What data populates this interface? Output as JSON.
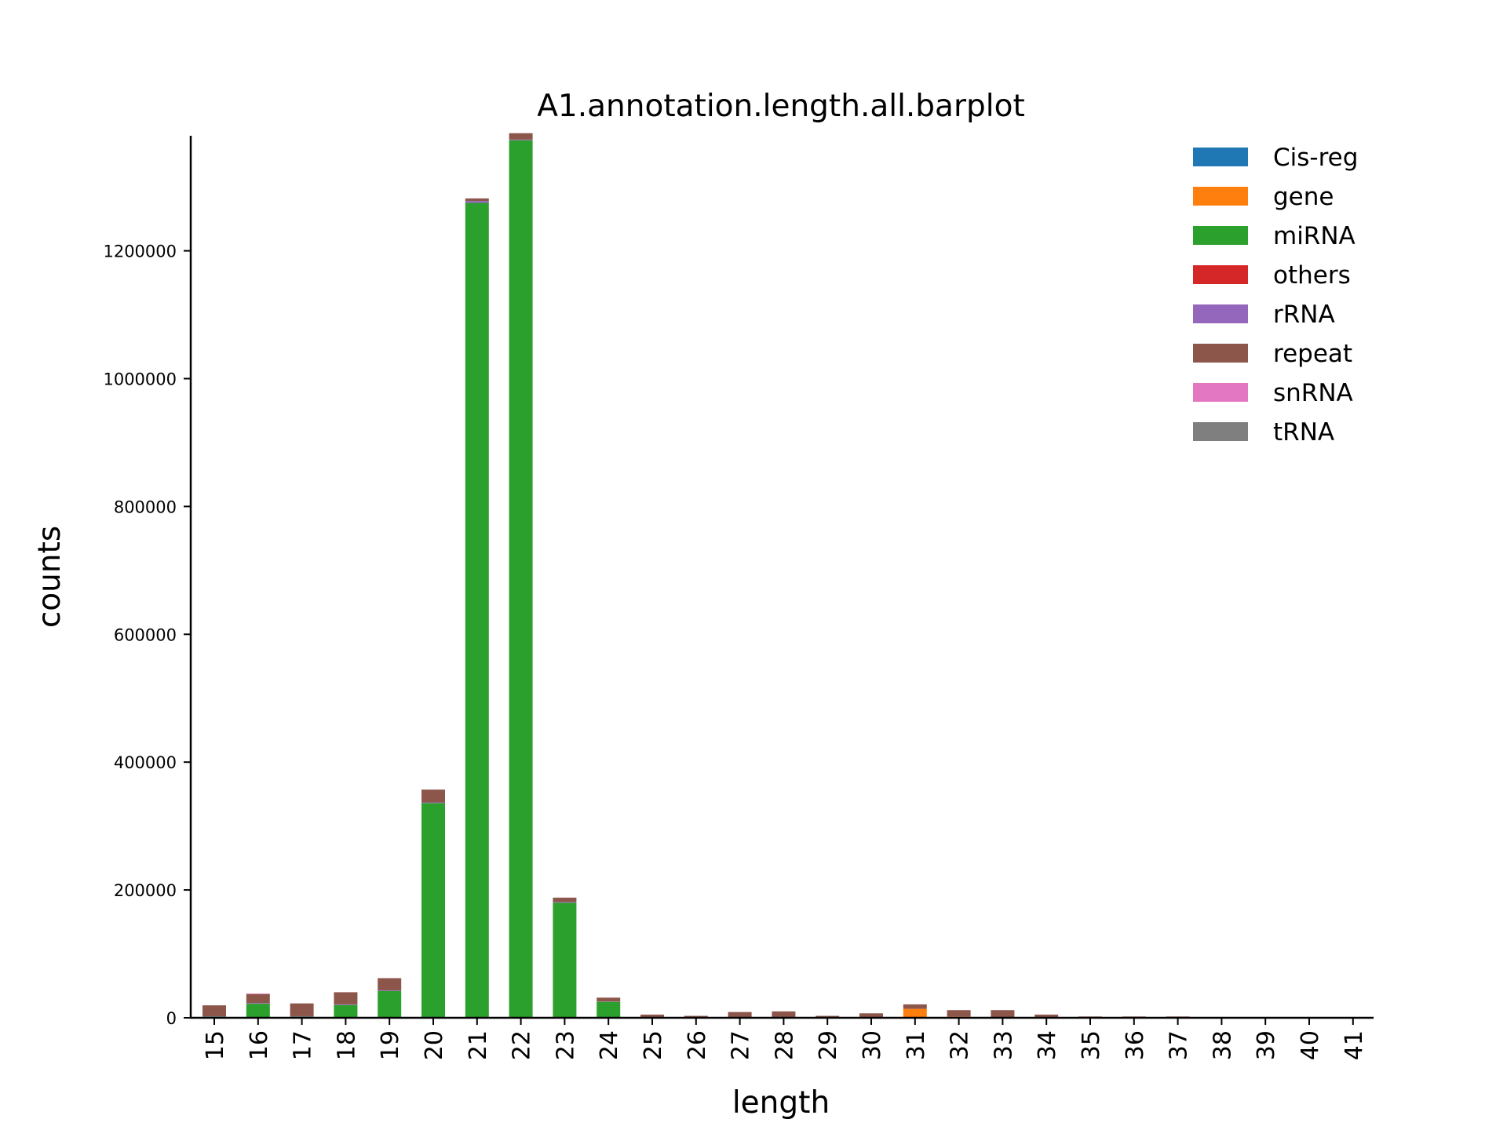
{
  "chart_data": {
    "type": "bar",
    "stacked": true,
    "title": "A1.annotation.length.all.barplot",
    "xlabel": "length",
    "ylabel": "counts",
    "ylim": [
      0,
      1380000
    ],
    "yticks": [
      "0",
      "200000",
      "400000",
      "600000",
      "800000",
      "1000000",
      "1200000"
    ],
    "ytick_values": [
      0,
      200000,
      400000,
      600000,
      800000,
      1000000,
      1200000
    ],
    "categories": [
      "15",
      "16",
      "17",
      "18",
      "19",
      "20",
      "21",
      "22",
      "23",
      "24",
      "25",
      "26",
      "27",
      "28",
      "29",
      "30",
      "31",
      "32",
      "33",
      "34",
      "35",
      "36",
      "37",
      "38",
      "39",
      "40",
      "41"
    ],
    "legend_position": "top-right",
    "grid": false,
    "series": [
      {
        "name": "Cis-reg",
        "color": "#1f77b4",
        "values": [
          0,
          0,
          0,
          0,
          0,
          0,
          0,
          0,
          0,
          0,
          0,
          0,
          0,
          0,
          0,
          0,
          0,
          0,
          0,
          0,
          0,
          0,
          0,
          0,
          0,
          0,
          0
        ]
      },
      {
        "name": "gene",
        "color": "#ff7f0e",
        "values": [
          0,
          0,
          0,
          0,
          0,
          0,
          0,
          0,
          0,
          0,
          0,
          0,
          0,
          0,
          0,
          0,
          14000,
          2000,
          0,
          0,
          0,
          0,
          0,
          0,
          0,
          0,
          0
        ]
      },
      {
        "name": "miRNA",
        "color": "#2ca02c",
        "values": [
          2000,
          22000,
          2000,
          20000,
          42000,
          336000,
          1275000,
          1373000,
          180000,
          25000,
          500,
          0,
          0,
          0,
          0,
          0,
          0,
          0,
          0,
          0,
          0,
          0,
          0,
          0,
          0,
          0,
          0
        ]
      },
      {
        "name": "others",
        "color": "#d62728",
        "values": [
          0,
          0,
          0,
          0,
          0,
          0,
          0,
          0,
          0,
          0,
          0,
          0,
          0,
          0,
          0,
          0,
          0,
          0,
          0,
          0,
          0,
          0,
          0,
          0,
          0,
          0,
          0
        ]
      },
      {
        "name": "rRNA",
        "color": "#9467bd",
        "values": [
          500,
          1000,
          500,
          1000,
          1000,
          1000,
          3000,
          1000,
          1000,
          500,
          500,
          0,
          0,
          0,
          0,
          0,
          0,
          0,
          0,
          0,
          0,
          0,
          0,
          0,
          0,
          0,
          0
        ]
      },
      {
        "name": "repeat",
        "color": "#8c564b",
        "values": [
          17000,
          14000,
          20000,
          19000,
          19000,
          20000,
          4000,
          10000,
          7000,
          6000,
          4000,
          3000,
          9000,
          10000,
          3000,
          7000,
          7000,
          10000,
          12000,
          5000,
          2000,
          2000,
          2000,
          0,
          0,
          0,
          0
        ]
      },
      {
        "name": "snRNA",
        "color": "#e377c2",
        "values": [
          0,
          1000,
          0,
          0,
          0,
          0,
          0,
          0,
          0,
          0,
          0,
          0,
          0,
          0,
          0,
          0,
          0,
          0,
          0,
          0,
          0,
          0,
          0,
          0,
          0,
          0,
          0
        ]
      },
      {
        "name": "tRNA",
        "color": "#7f7f7f",
        "values": [
          0,
          0,
          0,
          0,
          0,
          0,
          0,
          0,
          0,
          0,
          0,
          0,
          0,
          0,
          0,
          0,
          0,
          0,
          0,
          0,
          0,
          0,
          0,
          0,
          0,
          0,
          0
        ]
      }
    ]
  }
}
